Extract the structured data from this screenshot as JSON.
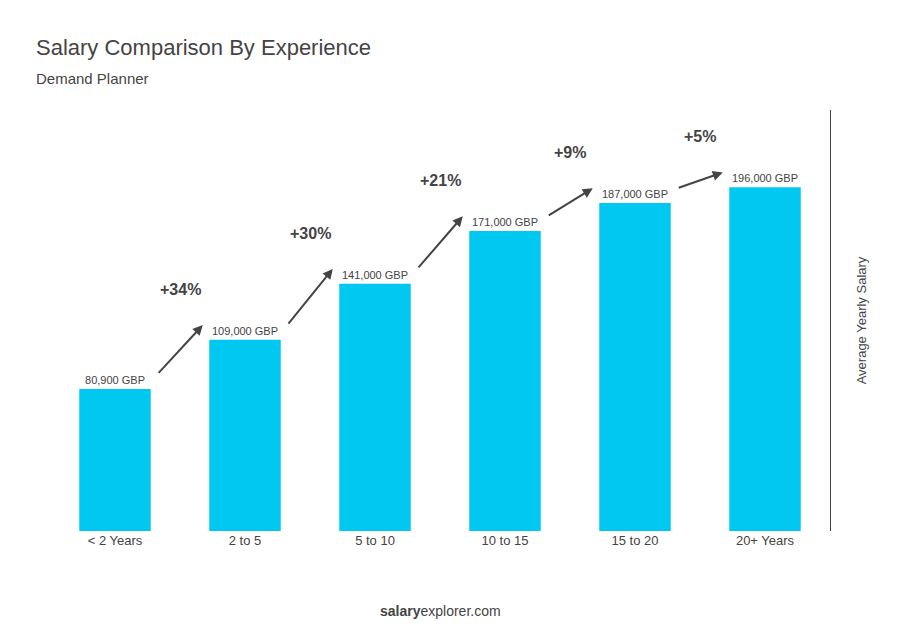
{
  "chart_data": {
    "type": "bar",
    "title": "Salary Comparison By Experience",
    "subtitle": "Demand Planner",
    "categories": [
      "< 2 Years",
      "2 to 5",
      "5 to 10",
      "10 to 15",
      "15 to 20",
      "20+ Years"
    ],
    "values": [
      80900,
      109000,
      141000,
      171000,
      187000,
      196000
    ],
    "value_labels": [
      "80,900 GBP",
      "109,000 GBP",
      "141,000 GBP",
      "171,000 GBP",
      "187,000 GBP",
      "196,000 GBP"
    ],
    "data_labels": true,
    "color": "#00c8f0",
    "ylabel": "Average Yearly Salary",
    "ylim": [
      0,
      240000
    ],
    "yticks": [],
    "tick_labels": "x",
    "grid": false,
    "annotations": [
      {
        "from": "< 2 Years",
        "to": "2 to 5",
        "text": "+34%"
      },
      {
        "from": "2 to 5",
        "to": "5 to 10",
        "text": "+30%"
      },
      {
        "from": "5 to 10",
        "to": "10 to 15",
        "text": "+21%"
      },
      {
        "from": "10 to 15",
        "to": "15 to 20",
        "text": "+9%"
      },
      {
        "from": "15 to 20",
        "to": "20+ Years",
        "text": "+5%"
      }
    ],
    "footer": [
      "salary",
      "explorer.com"
    ]
  }
}
